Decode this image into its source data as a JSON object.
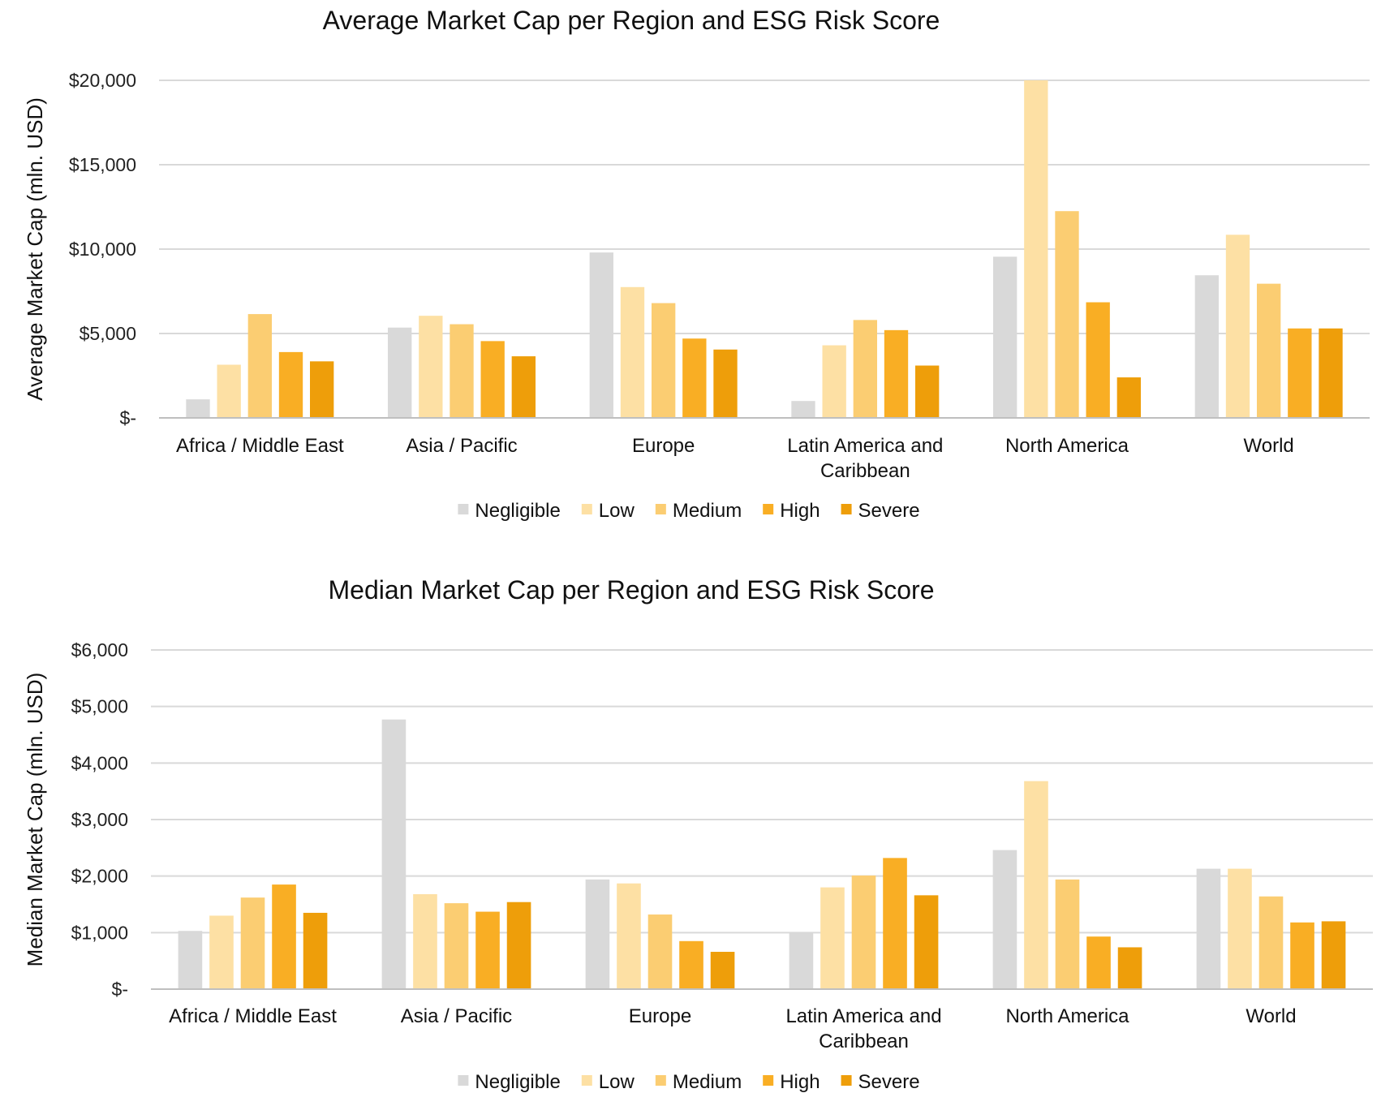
{
  "chart_data": [
    {
      "type": "bar",
      "title": "Average Market Cap per Region and ESG Risk Score",
      "ylabel": "Average Market Cap (mln. USD)",
      "xlabel": "",
      "ylim": [
        0,
        20000
      ],
      "yticks": [
        {
          "value": 0,
          "label": "$-"
        },
        {
          "value": 5000,
          "label": "$5,000"
        },
        {
          "value": 10000,
          "label": "$10,000"
        },
        {
          "value": 15000,
          "label": "$15,000"
        },
        {
          "value": 20000,
          "label": "$20,000"
        }
      ],
      "grid": true,
      "legend_position": "bottom",
      "categories": [
        [
          "Africa / Middle East"
        ],
        [
          "Asia / Pacific"
        ],
        [
          "Europe"
        ],
        [
          "Latin America and",
          "Caribbean"
        ],
        [
          "North America"
        ],
        [
          "World"
        ]
      ],
      "series": [
        {
          "name": "Negligible",
          "color": "#d9d9d9",
          "values": [
            1100,
            5350,
            9800,
            1000,
            9550,
            8450
          ]
        },
        {
          "name": "Low",
          "color": "#fde0a4",
          "values": [
            3150,
            6050,
            7750,
            4300,
            20000,
            10850
          ]
        },
        {
          "name": "Medium",
          "color": "#fbcd72",
          "values": [
            6150,
            5550,
            6800,
            5800,
            12250,
            7950
          ]
        },
        {
          "name": "High",
          "color": "#f9ae24",
          "values": [
            3900,
            4550,
            4700,
            5200,
            6850,
            5300
          ]
        },
        {
          "name": "Severe",
          "color": "#ee9e0a",
          "values": [
            3350,
            3650,
            4050,
            3100,
            2400,
            5300
          ]
        }
      ]
    },
    {
      "type": "bar",
      "title": "Median Market Cap per Region and ESG Risk Score",
      "ylabel": "Median Market Cap  (mln. USD)",
      "xlabel": "",
      "ylim": [
        0,
        6000
      ],
      "yticks": [
        {
          "value": 0,
          "label": "$-"
        },
        {
          "value": 1000,
          "label": "$1,000"
        },
        {
          "value": 2000,
          "label": "$2,000"
        },
        {
          "value": 3000,
          "label": "$3,000"
        },
        {
          "value": 4000,
          "label": "$4,000"
        },
        {
          "value": 5000,
          "label": "$5,000"
        },
        {
          "value": 6000,
          "label": "$6,000"
        }
      ],
      "grid": true,
      "legend_position": "bottom",
      "categories": [
        [
          "Africa / Middle East"
        ],
        [
          "Asia / Pacific"
        ],
        [
          "Europe"
        ],
        [
          "Latin America and",
          "Caribbean"
        ],
        [
          "North America"
        ],
        [
          "World"
        ]
      ],
      "series": [
        {
          "name": "Negligible",
          "color": "#d9d9d9",
          "values": [
            1030,
            4770,
            1940,
            1000,
            2460,
            2130
          ]
        },
        {
          "name": "Low",
          "color": "#fde0a4",
          "values": [
            1300,
            1680,
            1870,
            1800,
            3680,
            2130
          ]
        },
        {
          "name": "Medium",
          "color": "#fbcd72",
          "values": [
            1620,
            1520,
            1320,
            2010,
            1940,
            1640
          ]
        },
        {
          "name": "High",
          "color": "#f9ae24",
          "values": [
            1850,
            1370,
            850,
            2320,
            930,
            1180
          ]
        },
        {
          "name": "Severe",
          "color": "#ee9e0a",
          "values": [
            1350,
            1540,
            660,
            1660,
            740,
            1200
          ]
        }
      ]
    }
  ]
}
